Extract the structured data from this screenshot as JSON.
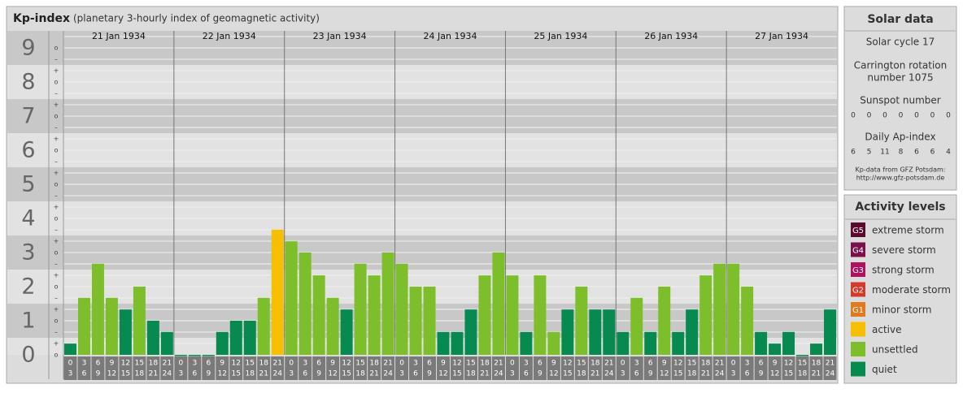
{
  "header": {
    "title": "Kp-index",
    "subtitle": "(planetary 3-hourly index of geomagnetic activity)"
  },
  "chart_data": {
    "type": "bar",
    "ylim": [
      0,
      9.5
    ],
    "yticks": [
      0,
      1,
      2,
      3,
      4,
      5,
      6,
      7,
      8,
      9
    ],
    "minor_labels": [
      "–",
      "o",
      "+"
    ],
    "hour_slots": [
      [
        "0",
        "3"
      ],
      [
        "3",
        "6"
      ],
      [
        "6",
        "9"
      ],
      [
        "9",
        "12"
      ],
      [
        "12",
        "15"
      ],
      [
        "15",
        "18"
      ],
      [
        "18",
        "21"
      ],
      [
        "21",
        "24"
      ]
    ],
    "days": [
      {
        "date": "21 Jan 1934",
        "values": [
          0.33,
          1.67,
          2.67,
          1.67,
          1.33,
          2,
          1,
          0.67
        ],
        "colors": [
          "#078a50",
          "#7dbf2a",
          "#7dbf2a",
          "#7dbf2a",
          "#078a50",
          "#7dbf2a",
          "#078a50",
          "#078a50"
        ]
      },
      {
        "date": "22 Jan 1934",
        "values": [
          0,
          0,
          0,
          0.67,
          1,
          1,
          1.67,
          3.67
        ],
        "colors": [
          "#078a50",
          "#078a50",
          "#078a50",
          "#078a50",
          "#078a50",
          "#078a50",
          "#7dbf2a",
          "#f6c000"
        ]
      },
      {
        "date": "23 Jan 1934",
        "values": [
          3.33,
          3,
          2.33,
          1.67,
          1.33,
          2.67,
          2.33,
          3
        ],
        "colors": [
          "#7dbf2a",
          "#7dbf2a",
          "#7dbf2a",
          "#7dbf2a",
          "#078a50",
          "#7dbf2a",
          "#7dbf2a",
          "#7dbf2a"
        ]
      },
      {
        "date": "24 Jan 1934",
        "values": [
          2.67,
          2,
          2,
          0.67,
          0.67,
          1.33,
          2.33,
          3
        ],
        "colors": [
          "#7dbf2a",
          "#7dbf2a",
          "#7dbf2a",
          "#078a50",
          "#078a50",
          "#078a50",
          "#7dbf2a",
          "#7dbf2a"
        ]
      },
      {
        "date": "25 Jan 1934",
        "values": [
          2.33,
          0.67,
          2.33,
          0.67,
          1.33,
          2,
          1.33,
          1.33
        ],
        "colors": [
          "#7dbf2a",
          "#078a50",
          "#7dbf2a",
          "#7dbf2a",
          "#078a50",
          "#7dbf2a",
          "#078a50",
          "#078a50"
        ]
      },
      {
        "date": "26 Jan 1934",
        "values": [
          0.67,
          1.67,
          0.67,
          2,
          0.67,
          1.33,
          2.33,
          2.67
        ],
        "colors": [
          "#078a50",
          "#7dbf2a",
          "#078a50",
          "#7dbf2a",
          "#078a50",
          "#078a50",
          "#7dbf2a",
          "#7dbf2a"
        ]
      },
      {
        "date": "27 Jan 1934",
        "values": [
          2.67,
          2,
          0.67,
          0.33,
          0.67,
          0,
          0.33,
          1.33
        ],
        "colors": [
          "#7dbf2a",
          "#7dbf2a",
          "#078a50",
          "#078a50",
          "#078a50",
          "#078a50",
          "#078a50",
          "#078a50"
        ]
      }
    ]
  },
  "solar_data": {
    "title": "Solar data",
    "cycle": "Solar cycle 17",
    "carrington": [
      "Carrington rotation",
      "number 1075"
    ],
    "sunspot_title": "Sunspot number",
    "sunspot": [
      0,
      0,
      0,
      0,
      0,
      0,
      0
    ],
    "ap_title": "Daily Ap-index",
    "ap": [
      6,
      5,
      11,
      8,
      6,
      6,
      4
    ],
    "credit": [
      "Kp-data from GFZ Potsdam:",
      "http://www.gfz-potsdam.de"
    ]
  },
  "activity": {
    "title": "Activity levels",
    "items": [
      {
        "badge": "G5",
        "label": "extreme storm",
        "color": "#5a0a2e"
      },
      {
        "badge": "G4",
        "label": "severe storm",
        "color": "#7a0f4a"
      },
      {
        "badge": "G3",
        "label": "strong storm",
        "color": "#b0105e"
      },
      {
        "badge": "G2",
        "label": "moderate storm",
        "color": "#d23a2a"
      },
      {
        "badge": "G1",
        "label": "minor storm",
        "color": "#e07a1e"
      },
      {
        "label": "active",
        "color": "#f6c000"
      },
      {
        "label": "unsettled",
        "color": "#7dbf2a"
      },
      {
        "label": "quiet",
        "color": "#078a50"
      }
    ]
  }
}
